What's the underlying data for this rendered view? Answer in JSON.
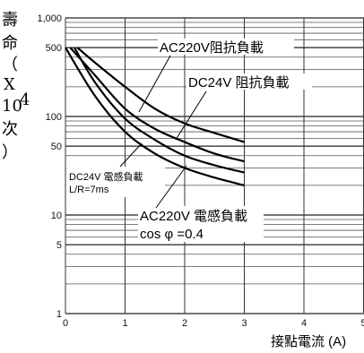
{
  "chart_data": {
    "type": "line",
    "ylabel_chars": [
      "壽",
      "命",
      "（",
      "X",
      "10",
      "4",
      "次",
      "）"
    ],
    "xlabel": "接點電流 (A)",
    "xlim": [
      0,
      5
    ],
    "ylim": [
      1,
      1000
    ],
    "yscale": "log",
    "x_ticks": [
      "0",
      "1",
      "2",
      "3",
      "4",
      "5"
    ],
    "y_ticks": [
      {
        "value": 1000,
        "label": "1,000"
      },
      {
        "value": 500,
        "label": "500"
      },
      {
        "value": 100,
        "label": "100"
      },
      {
        "value": 50,
        "label": "50"
      },
      {
        "value": 10,
        "label": "10"
      },
      {
        "value": 5,
        "label": "5"
      },
      {
        "value": 1,
        "label": "1"
      }
    ],
    "grid": true,
    "series": [
      {
        "label_lines": [
          "AC220V阻抗負載"
        ],
        "x": [
          0.2,
          0.5,
          1.0,
          1.5,
          2.0,
          2.5,
          3.0
        ],
        "y": [
          500,
          350,
          200,
          120,
          85,
          68,
          55
        ]
      },
      {
        "label_lines": [
          "DC24V 阻抗負載"
        ],
        "x": [
          0.08,
          0.5,
          1.0,
          1.5,
          2.0,
          2.5,
          3.0
        ],
        "y": [
          500,
          260,
          120,
          75,
          55,
          42,
          35
        ]
      },
      {
        "label_lines": [
          "AC220V 電感負載",
          "cos  φ  =0.4"
        ],
        "x": [
          0.15,
          0.5,
          1.0,
          1.5,
          2.0,
          2.5,
          3.0
        ],
        "y": [
          500,
          220,
          95,
          58,
          40,
          32,
          27
        ]
      },
      {
        "label_lines": [
          "DC24V 電感負載",
          "L/R=7ms"
        ],
        "x": [
          0,
          0.5,
          1.0,
          1.5,
          2.0,
          2.5,
          3.0
        ],
        "y": [
          500,
          160,
          70,
          42,
          30,
          24,
          20
        ]
      }
    ]
  }
}
